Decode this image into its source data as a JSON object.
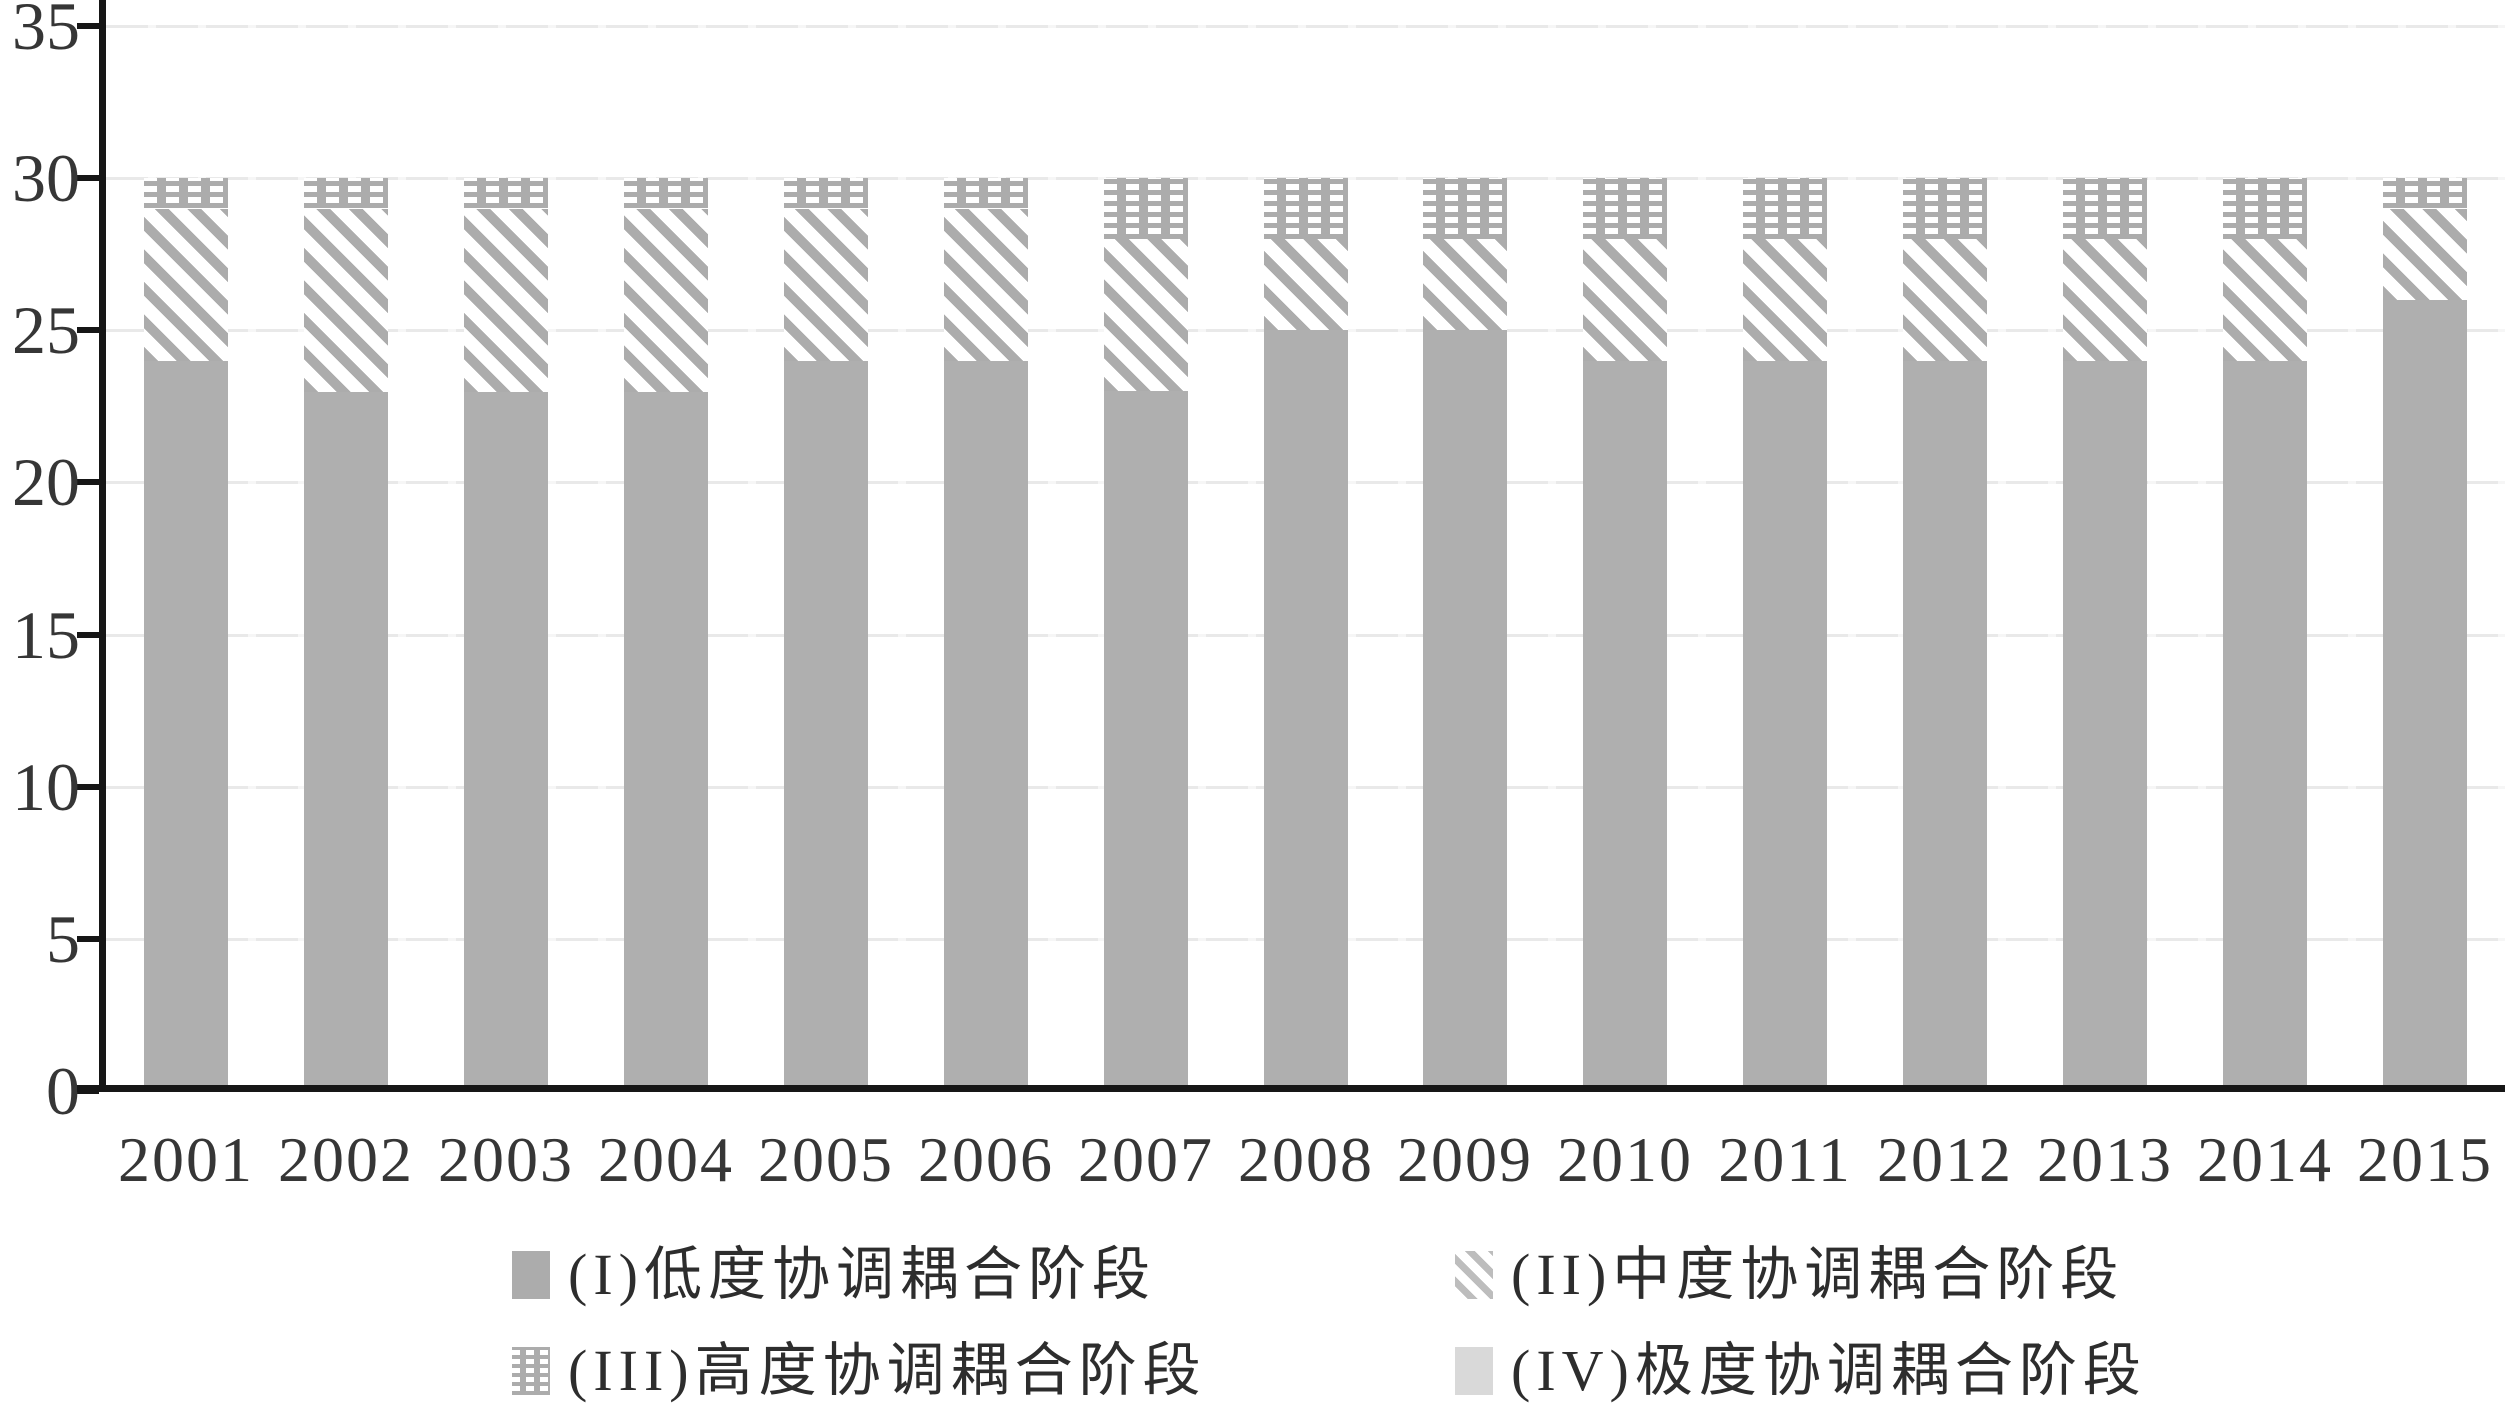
{
  "chart_data": {
    "type": "bar",
    "stacked": true,
    "title": "",
    "xlabel": "",
    "ylabel": "",
    "ylim": [
      0,
      35
    ],
    "yticks": [
      0,
      5,
      10,
      15,
      20,
      25,
      30,
      35
    ],
    "grid": true,
    "legend_position": "bottom",
    "categories": [
      "2001",
      "2002",
      "2003",
      "2004",
      "2005",
      "2006",
      "2007",
      "2008",
      "2009",
      "2010",
      "2011",
      "2012",
      "2013",
      "2014",
      "2015"
    ],
    "series": [
      {
        "name": "(I)低度协调耦合阶段",
        "pattern": "solid",
        "values": [
          24,
          23,
          23,
          23,
          24,
          24,
          23,
          25,
          25,
          24,
          24,
          24,
          24,
          24,
          26
        ]
      },
      {
        "name": "(II)中度协调耦合阶段",
        "pattern": "hatch",
        "values": [
          5,
          6,
          6,
          6,
          5,
          5,
          5,
          3,
          3,
          4,
          4,
          4,
          4,
          4,
          3
        ]
      },
      {
        "name": "(III)高度协调耦合阶段",
        "pattern": "brick",
        "values": [
          1,
          1,
          1,
          1,
          1,
          1,
          2,
          2,
          2,
          2,
          2,
          2,
          2,
          2,
          1
        ]
      },
      {
        "name": "(IV)极度协调耦合阶段",
        "pattern": "light",
        "values": [
          0,
          0,
          0,
          0,
          0,
          0,
          0,
          0,
          0,
          0,
          0,
          0,
          0,
          0,
          0
        ]
      }
    ]
  },
  "colors": {
    "bar_solid": "#afafaf",
    "pattern_gray": "#acacac",
    "light_gray": "#d9d9d9",
    "axis": "#161616",
    "gridline": "#e9e9e9",
    "label_text": "#363636",
    "legend_text": "#2d2d2d",
    "background": "#ffffff"
  }
}
